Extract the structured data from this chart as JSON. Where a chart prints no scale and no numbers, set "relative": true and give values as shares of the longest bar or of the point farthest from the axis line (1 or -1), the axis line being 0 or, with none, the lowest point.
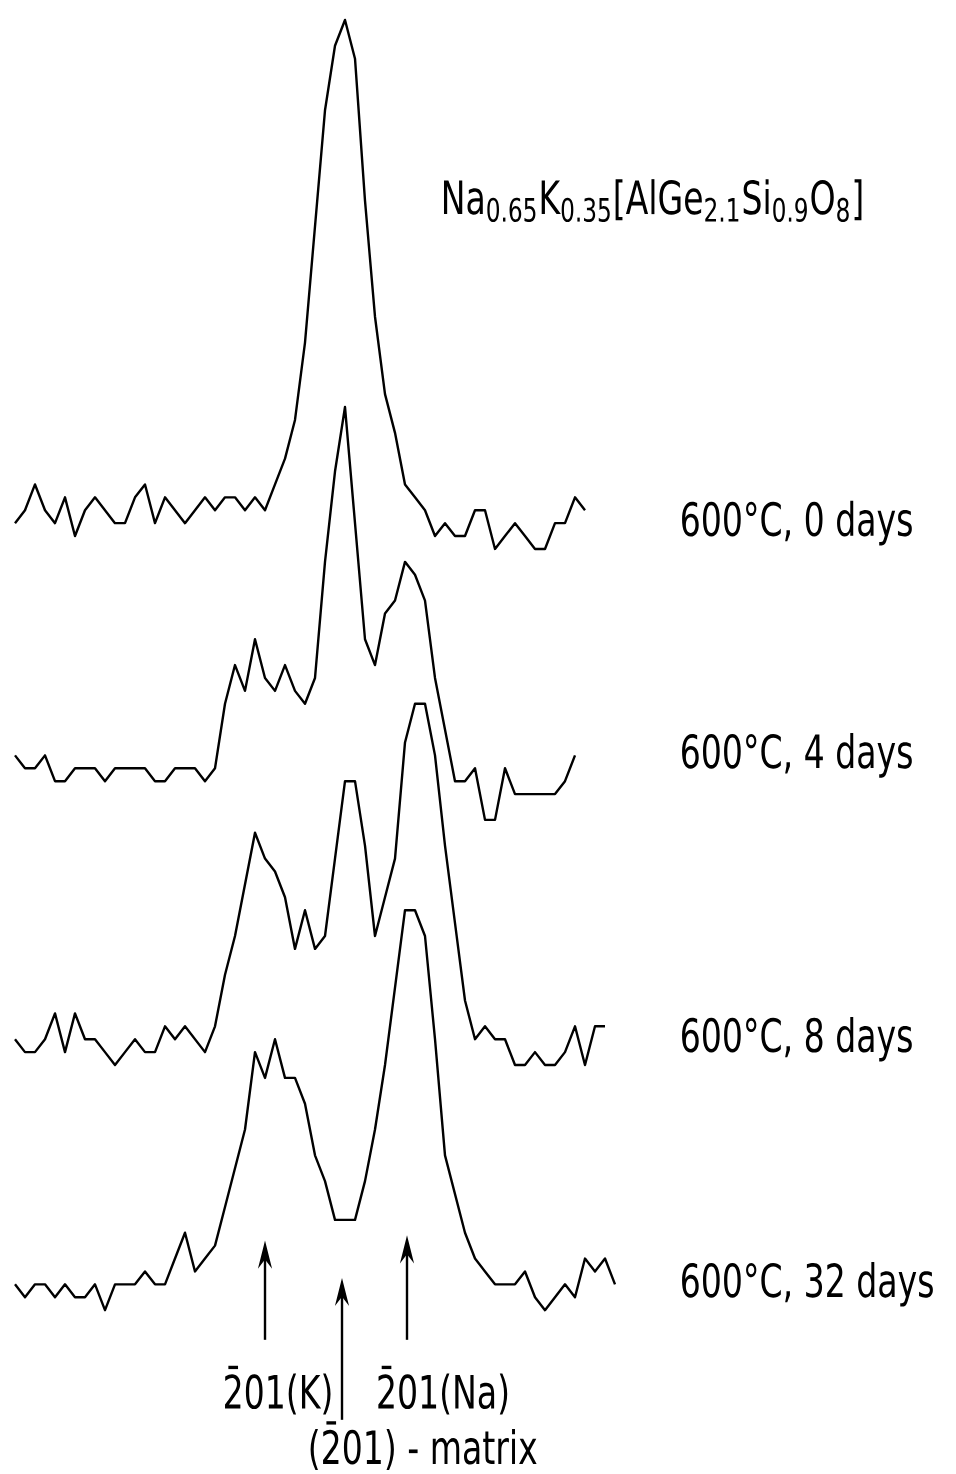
{
  "chart_data": {
    "type": "line",
    "relative": true,
    "title": "Na$_{0.65}$K$_{0.35}$[AlGe$_{2.1}$Si$_{0.9}$O$_{8}$]",
    "annotations": [
      "2̄01(K)",
      "(2̄01) - matrix",
      "2̄01(Na)"
    ],
    "categories": [
      null,
      null,
      null,
      null,
      null,
      null,
      null,
      null,
      null,
      null,
      null,
      null,
      null,
      null,
      null,
      null,
      null,
      null,
      null,
      null,
      null,
      null,
      null,
      null,
      null,
      null,
      null,
      null,
      null,
      null,
      null,
      null,
      null,
      null,
      null,
      null,
      null,
      null,
      null,
      null,
      null,
      null,
      null,
      null,
      null,
      null,
      null,
      null,
      null,
      null,
      null,
      null,
      null,
      null,
      null,
      null,
      null,
      null,
      null,
      null,
      null
    ],
    "series": [
      {
        "name": "600°C,  0 days",
        "color": "#000000",
        "values": [
          0.61,
          0.62,
          0.64,
          0.62,
          0.61,
          0.63,
          0.6,
          0.62,
          0.63,
          0.62,
          0.61,
          0.61,
          0.63,
          0.64,
          0.61,
          0.63,
          0.62,
          0.61,
          0.62,
          0.63,
          0.62,
          0.63,
          0.63,
          0.62,
          0.63,
          0.62,
          0.64,
          0.66,
          0.69,
          0.75,
          0.84,
          0.93,
          0.98,
          1.0,
          0.97,
          0.86,
          0.77,
          0.71,
          0.68,
          0.64,
          0.63,
          0.62,
          0.6,
          0.61,
          0.6,
          0.6,
          0.62,
          0.62,
          0.59,
          0.6,
          0.61,
          0.6,
          0.59,
          0.59,
          0.61,
          0.61,
          0.63,
          0.62,
          null,
          null,
          null
        ]
      },
      {
        "name": "600°C,  4 days",
        "color": "#000000",
        "values": [
          0.43,
          0.42,
          0.42,
          0.43,
          0.41,
          0.41,
          0.42,
          0.42,
          0.42,
          0.41,
          0.42,
          0.42,
          0.42,
          0.42,
          0.41,
          0.41,
          0.42,
          0.42,
          0.42,
          0.41,
          0.42,
          0.47,
          0.5,
          0.48,
          0.52,
          0.49,
          0.48,
          0.5,
          0.48,
          0.47,
          0.49,
          0.58,
          0.65,
          0.7,
          0.61,
          0.52,
          0.5,
          0.54,
          0.55,
          0.58,
          0.57,
          0.55,
          0.49,
          0.45,
          0.41,
          0.41,
          0.42,
          0.38,
          0.38,
          0.42,
          0.4,
          0.4,
          0.4,
          0.4,
          0.4,
          0.41,
          0.43,
          null,
          null,
          null,
          null
        ]
      },
      {
        "name": "600°C,  8 days",
        "color": "#000000",
        "values": [
          0.21,
          0.2,
          0.2,
          0.21,
          0.23,
          0.2,
          0.23,
          0.21,
          0.21,
          0.2,
          0.19,
          0.2,
          0.21,
          0.2,
          0.2,
          0.22,
          0.21,
          0.22,
          0.21,
          0.2,
          0.22,
          0.26,
          0.29,
          0.33,
          0.37,
          0.35,
          0.34,
          0.32,
          0.28,
          0.31,
          0.28,
          0.29,
          0.35,
          0.41,
          0.41,
          0.36,
          0.29,
          0.32,
          0.35,
          0.44,
          0.47,
          0.47,
          0.43,
          0.36,
          0.3,
          0.24,
          0.21,
          0.22,
          0.21,
          0.21,
          0.19,
          0.19,
          0.2,
          0.19,
          0.19,
          0.2,
          0.22,
          0.19,
          0.22,
          0.22,
          null
        ]
      },
      {
        "name": "600°C, 32 days",
        "color": "#000000",
        "values": [
          0.02,
          0.01,
          0.02,
          0.02,
          0.01,
          0.02,
          0.01,
          0.01,
          0.02,
          0.0,
          0.02,
          0.02,
          0.02,
          0.03,
          0.02,
          0.02,
          0.04,
          0.06,
          0.03,
          0.04,
          0.05,
          0.08,
          0.11,
          0.14,
          0.2,
          0.18,
          0.21,
          0.18,
          0.18,
          0.16,
          0.12,
          0.1,
          0.07,
          0.07,
          0.07,
          0.1,
          0.14,
          0.19,
          0.25,
          0.31,
          0.31,
          0.29,
          0.21,
          0.12,
          0.09,
          0.06,
          0.04,
          0.03,
          0.02,
          0.02,
          0.02,
          0.03,
          0.01,
          0.0,
          0.01,
          0.02,
          0.01,
          0.04,
          0.03,
          0.04,
          0.02
        ]
      }
    ]
  }
}
